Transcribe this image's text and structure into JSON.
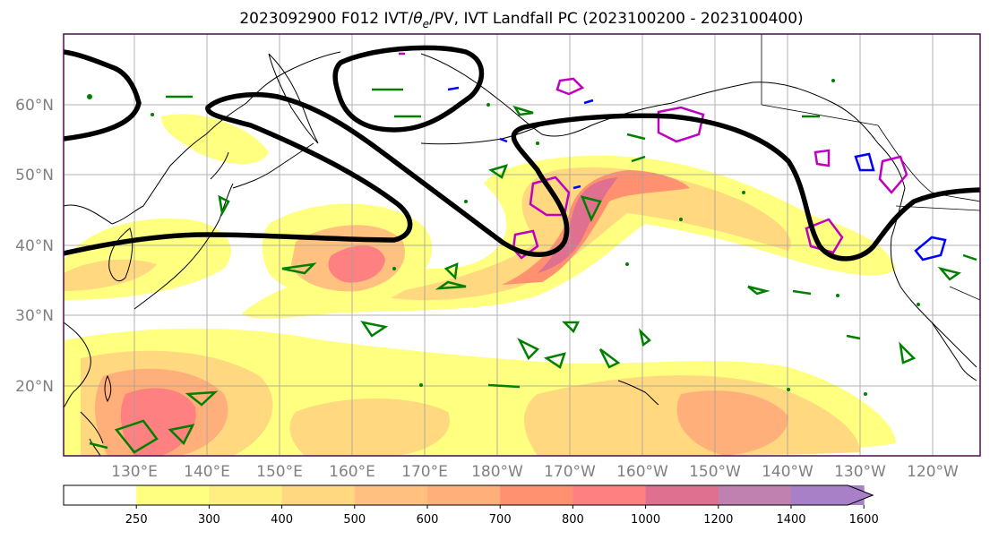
{
  "title": "2023092900 F012 IVT/",
  "title_theta": "θ",
  "title_sub": "e",
  "title_rest": "/PV, IVT Landfall PC (2023100200 - 2023100400)",
  "map": {
    "latitude_labels": [
      "60°N",
      "50°N",
      "40°N",
      "30°N",
      "20°N"
    ],
    "longitude_labels": [
      "130°E",
      "140°E",
      "150°E",
      "160°E",
      "170°E",
      "180°W",
      "170°W",
      "160°W",
      "150°W",
      "140°W",
      "130°W",
      "120°W"
    ],
    "colors": {
      "frame": "#4b0f4b",
      "coastline": "#000000",
      "gridline": "#a0a0a0",
      "theta_e_contour": "#000000",
      "pv_contour": "#008000",
      "landfall_pc_magenta": "#c000c0",
      "landfall_pc_blue": "#0000ff"
    }
  },
  "colorbar": {
    "tick_labels": [
      "250",
      "300",
      "400",
      "500",
      "600",
      "700",
      "800",
      "1000",
      "1200",
      "1400",
      "1600"
    ],
    "level_colors": [
      "#ffffff",
      "#ffff80",
      "#ffef80",
      "#ffd880",
      "#ffc080",
      "#ffb07a",
      "#ff9070",
      "#ff8080",
      "#e07090",
      "#c080b0",
      "#a880c8"
    ],
    "extend": "max"
  }
}
